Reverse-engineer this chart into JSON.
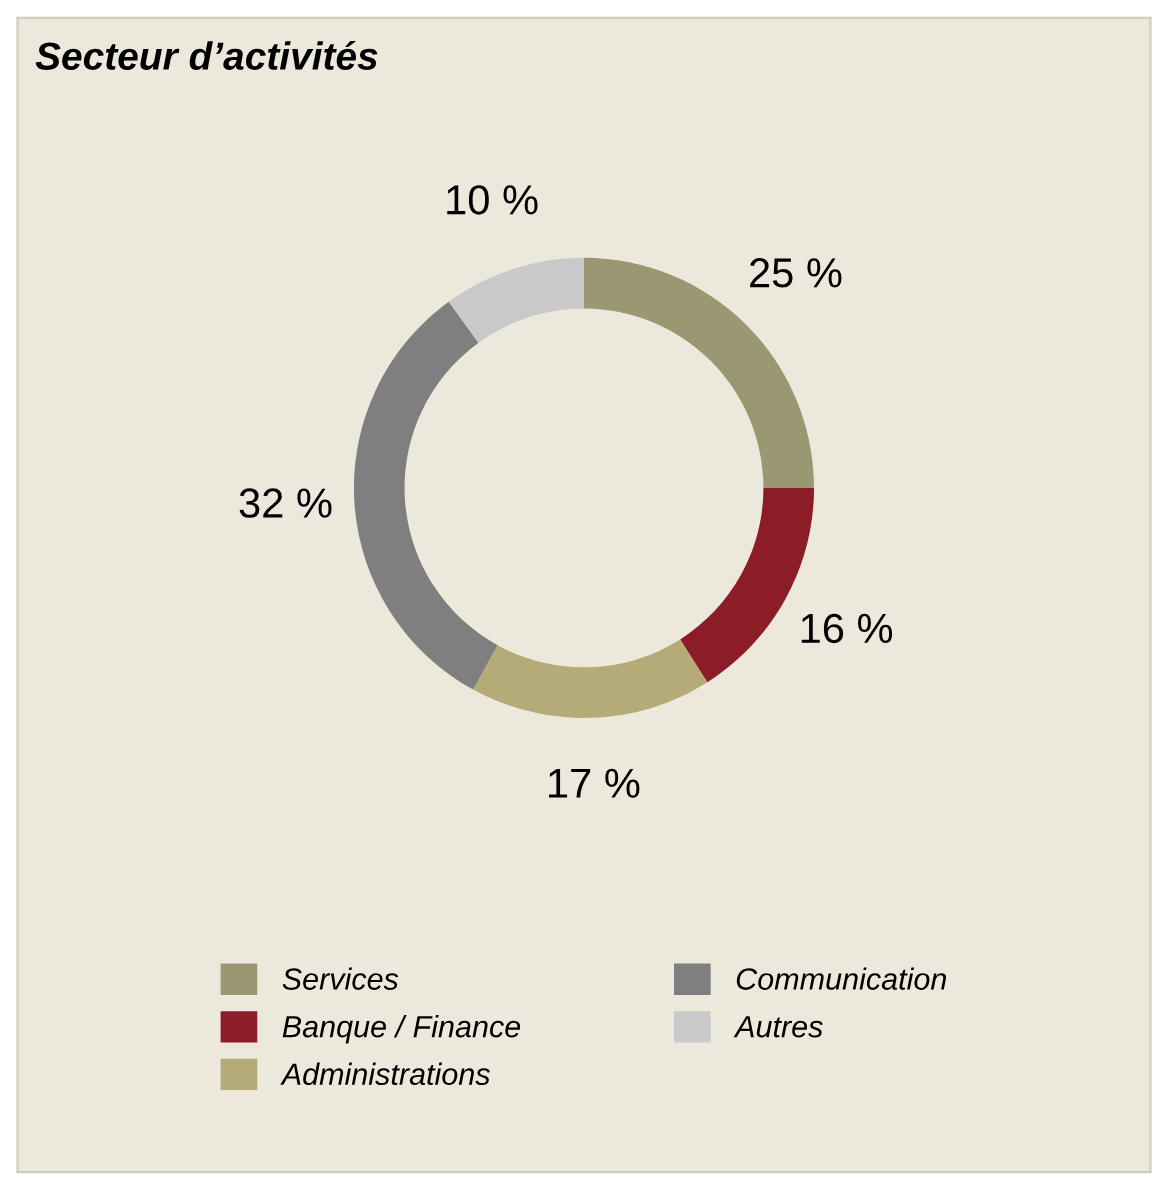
{
  "chart_data": {
    "type": "donut",
    "title": "Secteur d’activités",
    "categories": [
      "Services",
      "Banque / Finance",
      "Administrations",
      "Communication",
      "Autres"
    ],
    "values": [
      25,
      16,
      17,
      32,
      10
    ],
    "value_labels": [
      "25 %",
      "16 %",
      "17 %",
      "32 %",
      "10 %"
    ],
    "colors": [
      "#9a9873",
      "#8c1d27",
      "#b5ab78",
      "#7f7f7f",
      "#c9c9c9"
    ],
    "legend": "bottom"
  }
}
